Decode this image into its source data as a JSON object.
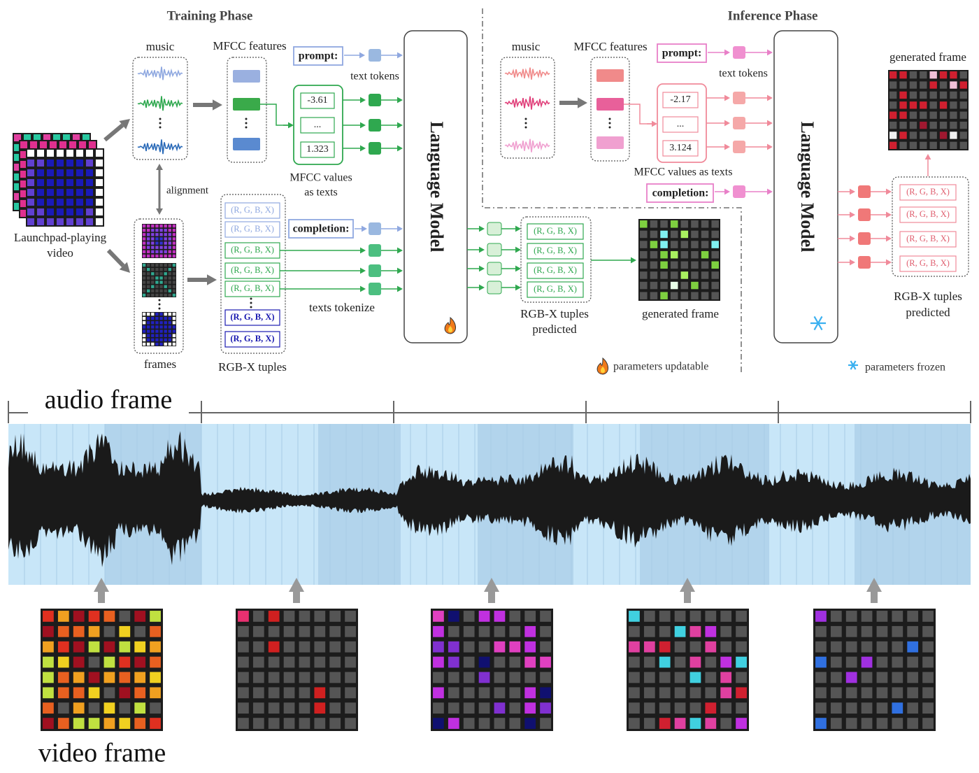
{
  "training": {
    "title": "Training Phase",
    "input_video": [
      "Launchpad-playing",
      "video"
    ],
    "music": "music",
    "alignment": "alignment",
    "frames": "frames",
    "mfcc_features": "MFCC features",
    "prompt": "prompt:",
    "text_tokens": "text tokens",
    "mfcc_values": [
      "-3.61",
      "...",
      "1.323"
    ],
    "mfcc_caption": [
      "MFCC values",
      "as texts"
    ],
    "rgbx_tuples": "RGB-X tuples",
    "tuple": "(R, G, B, X)",
    "completion": "completion:",
    "texts_tokenize": "texts tokenize",
    "model": "Language Model",
    "predicted_caption": [
      "RGB-X tuples",
      "predicted"
    ],
    "generated_frame": "generated frame",
    "legend": "parameters updatable"
  },
  "inference": {
    "title": "Inference Phase",
    "music": "music",
    "mfcc_features": "MFCC features",
    "prompt": "prompt:",
    "text_tokens": "text tokens",
    "mfcc_values": [
      "-2.17",
      "...",
      "3.124"
    ],
    "mfcc_caption": "MFCC values as texts",
    "completion": "completion:",
    "model": "Language Model",
    "tuple": "(R, G, B, X)",
    "predicted_caption": [
      "RGB-X tuples",
      "predicted"
    ],
    "generated_frame": "generated frame",
    "legend": "parameters frozen"
  },
  "timeline": {
    "audio_frame": "audio frame",
    "video_frame": "video frame"
  }
}
